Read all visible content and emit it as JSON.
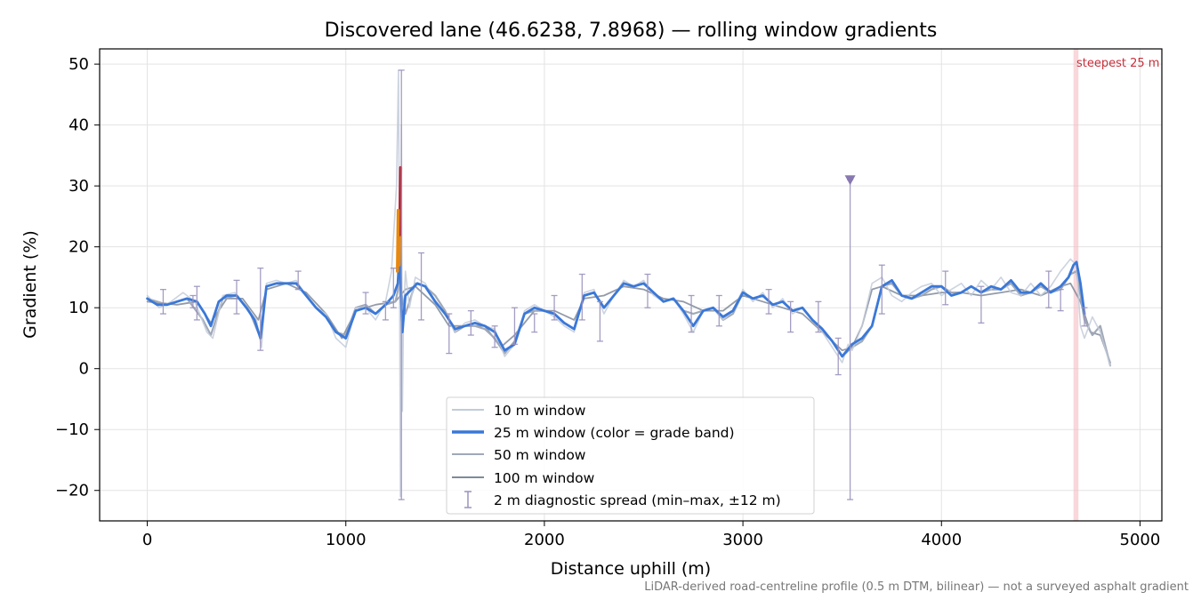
{
  "chart_data": {
    "type": "line",
    "title": "Discovered lane (46.6238, 7.8968) — rolling window gradients",
    "xlabel": "Distance uphill (m)",
    "ylabel": "Gradient (%)",
    "xlim": [
      -240,
      5110
    ],
    "ylim": [
      -25,
      52.5
    ],
    "xticks": [
      0,
      1000,
      2000,
      3000,
      4000,
      5000
    ],
    "yticks": [
      -20,
      -10,
      0,
      10,
      20,
      30,
      40,
      50
    ],
    "xtick_labels": [
      "0",
      "1000",
      "2000",
      "3000",
      "4000",
      "5000"
    ],
    "ytick_labels": [
      "−20",
      "−10",
      "0",
      "10",
      "20",
      "30",
      "40",
      "50"
    ],
    "grid": true,
    "legend": {
      "placement": "lower-center",
      "entries": [
        {
          "label": "10 m window",
          "color": "#c3cbd9"
        },
        {
          "label": "25 m window (color = grade band)",
          "color": "#3a78d8"
        },
        {
          "label": "50 m window",
          "color": "#a0a9b8"
        },
        {
          "label": "100 m window",
          "color": "#808a99"
        },
        {
          "label": "2 m diagnostic spread (min–max, ±12 m)",
          "color": "#9a92bd"
        }
      ]
    },
    "annotation": "steepest 25 m",
    "footnote": "LiDAR-derived road-centreline profile (0.5 m DTM, bilinear) — not a surveyed asphalt gradient",
    "steepest_band": [
      4665,
      4690
    ],
    "colors": {
      "w10": "#c3cbd9",
      "w25": "#3a78d8",
      "w50": "#a0a9b8",
      "w100": "#808a99",
      "spread": "#9a92bd",
      "band_orange": "#e8880e",
      "band_red": "#b81f2c",
      "highlight": "#f4b6bd"
    },
    "series": [
      {
        "name": "100 m window",
        "x": [
          0,
          150,
          250,
          320,
          400,
          480,
          560,
          600,
          700,
          800,
          900,
          980,
          1050,
          1150,
          1250,
          1300,
          1350,
          1450,
          1520,
          1600,
          1700,
          1780,
          1850,
          1950,
          2050,
          2150,
          2200,
          2300,
          2400,
          2500,
          2600,
          2700,
          2800,
          2900,
          3000,
          3100,
          3200,
          3300,
          3400,
          3500,
          3550,
          3600,
          3650,
          3700,
          3800,
          3900,
          4000,
          4100,
          4200,
          4300,
          4400,
          4500,
          4600,
          4650,
          4700,
          4750,
          4800,
          4850
        ],
        "y": [
          11,
          10.5,
          11,
          7.5,
          11.5,
          11.5,
          8,
          13,
          14,
          12.5,
          9,
          5,
          9.5,
          10.5,
          11,
          13,
          13.5,
          10.5,
          7,
          7,
          7,
          3.5,
          5.5,
          9.5,
          9.5,
          8,
          11.5,
          12,
          13.5,
          13,
          11.5,
          11,
          9.5,
          9.5,
          12,
          11,
          10,
          9,
          6,
          3,
          3.5,
          7,
          13,
          13.5,
          12,
          12,
          12.5,
          12.5,
          12,
          12.5,
          13,
          12,
          13.5,
          14,
          11,
          6,
          5.5,
          1
        ]
      },
      {
        "name": "50 m window",
        "x": [
          0,
          100,
          200,
          280,
          320,
          380,
          450,
          520,
          570,
          600,
          650,
          700,
          750,
          800,
          850,
          900,
          950,
          1000,
          1050,
          1100,
          1150,
          1200,
          1250,
          1270,
          1300,
          1350,
          1400,
          1450,
          1500,
          1550,
          1600,
          1650,
          1700,
          1750,
          1800,
          1850,
          1900,
          1950,
          2000,
          2050,
          2100,
          2150,
          2200,
          2250,
          2300,
          2350,
          2400,
          2450,
          2500,
          2550,
          2600,
          2650,
          2700,
          2750,
          2800,
          2850,
          2900,
          2950,
          3000,
          3050,
          3100,
          3150,
          3200,
          3250,
          3300,
          3350,
          3400,
          3450,
          3500,
          3550,
          3600,
          3650,
          3700,
          3750,
          3800,
          3850,
          3900,
          3950,
          4000,
          4050,
          4100,
          4150,
          4200,
          4250,
          4300,
          4350,
          4400,
          4450,
          4500,
          4550,
          4600,
          4650,
          4680,
          4720,
          4760,
          4800,
          4850
        ],
        "y": [
          11.5,
          10.5,
          11.5,
          8,
          5.5,
          11.5,
          12,
          9,
          5,
          13.5,
          14,
          14,
          14,
          12,
          10,
          8.5,
          6,
          5.5,
          10,
          10.5,
          9,
          10.5,
          11,
          14,
          9,
          14,
          13.5,
          12,
          9.5,
          6,
          7,
          7,
          6.5,
          5,
          2.5,
          4.5,
          9,
          9.5,
          9.5,
          9,
          7.5,
          6.5,
          12,
          12.5,
          10,
          12,
          14,
          13.5,
          14,
          12.5,
          11,
          11.5,
          9.5,
          9,
          9.5,
          10,
          8,
          9,
          12.5,
          11.5,
          12,
          10.5,
          11,
          9.5,
          10,
          8,
          6.5,
          4.5,
          2,
          3.5,
          4.5,
          7,
          13.5,
          14,
          12,
          11.5,
          12,
          13,
          13.5,
          12.5,
          12.5,
          13.5,
          12.5,
          13,
          13,
          14,
          12,
          12.5,
          13.5,
          12.5,
          13,
          15.5,
          16,
          8,
          5.5,
          7,
          0.5
        ]
      },
      {
        "name": "10 m window",
        "x": [
          0,
          60,
          120,
          180,
          240,
          300,
          330,
          380,
          440,
          500,
          550,
          575,
          600,
          650,
          700,
          750,
          800,
          850,
          900,
          950,
          1000,
          1050,
          1100,
          1150,
          1200,
          1230,
          1255,
          1265,
          1270,
          1275,
          1280,
          1285,
          1290,
          1300,
          1320,
          1350,
          1400,
          1450,
          1500,
          1550,
          1600,
          1650,
          1700,
          1750,
          1800,
          1850,
          1900,
          1950,
          2000,
          2050,
          2100,
          2150,
          2200,
          2250,
          2300,
          2350,
          2400,
          2450,
          2500,
          2550,
          2600,
          2650,
          2700,
          2750,
          2800,
          2850,
          2900,
          2950,
          3000,
          3050,
          3100,
          3150,
          3200,
          3250,
          3300,
          3350,
          3400,
          3450,
          3500,
          3530,
          3550,
          3600,
          3650,
          3700,
          3750,
          3800,
          3850,
          3900,
          3950,
          4000,
          4050,
          4100,
          4150,
          4200,
          4250,
          4300,
          4350,
          4400,
          4450,
          4500,
          4550,
          4600,
          4650,
          4680,
          4700,
          4720,
          4760,
          4800,
          4850
        ],
        "y": [
          12,
          10,
          11,
          12.5,
          11,
          6,
          5,
          12,
          12.5,
          10,
          8,
          3.5,
          14,
          14.5,
          14,
          14.5,
          12,
          10,
          9,
          5,
          3.5,
          10,
          10,
          8,
          11,
          16,
          30,
          49,
          20,
          -21,
          40,
          -7,
          8,
          16,
          10,
          15,
          14,
          11,
          9,
          6,
          7.5,
          8,
          7,
          6.5,
          2,
          4,
          9.5,
          10.5,
          9.5,
          8.5,
          7,
          6,
          12.5,
          13,
          9,
          12,
          14.5,
          13.5,
          14.5,
          12,
          11,
          11.5,
          9,
          6,
          9.5,
          10,
          8,
          9.5,
          13,
          11,
          12.5,
          10,
          11.5,
          9,
          10,
          8,
          6,
          3.5,
          1,
          4,
          3,
          7,
          14,
          15,
          12,
          11,
          12.5,
          13.5,
          14,
          12,
          13,
          14,
          12,
          14.5,
          13,
          15,
          12.5,
          12,
          14,
          12,
          13.5,
          16,
          18,
          17,
          7,
          5,
          8.5,
          6,
          0.5
        ]
      },
      {
        "name": "25 m window (color = grade band)",
        "x": [
          0,
          50,
          100,
          150,
          200,
          250,
          290,
          320,
          360,
          400,
          450,
          500,
          540,
          570,
          600,
          650,
          700,
          750,
          800,
          850,
          900,
          950,
          1000,
          1050,
          1100,
          1150,
          1200,
          1240,
          1262,
          1272,
          1278,
          1285,
          1300,
          1330,
          1360,
          1400,
          1450,
          1500,
          1550,
          1600,
          1650,
          1700,
          1750,
          1800,
          1850,
          1900,
          1950,
          2000,
          2050,
          2100,
          2150,
          2200,
          2250,
          2300,
          2350,
          2400,
          2450,
          2500,
          2550,
          2600,
          2650,
          2700,
          2750,
          2800,
          2850,
          2900,
          2950,
          3000,
          3050,
          3100,
          3150,
          3200,
          3250,
          3300,
          3350,
          3400,
          3450,
          3500,
          3550,
          3600,
          3650,
          3700,
          3750,
          3800,
          3850,
          3900,
          3950,
          4000,
          4050,
          4100,
          4150,
          4200,
          4250,
          4300,
          4350,
          4400,
          4450,
          4500,
          4550,
          4600,
          4640,
          4665,
          4680,
          4700,
          4720
        ],
        "y": [
          11.5,
          10.5,
          10.5,
          11,
          11.5,
          11,
          9,
          7,
          11,
          12,
          12,
          10,
          8,
          5,
          13.5,
          14,
          14,
          14,
          12,
          10,
          8.5,
          6,
          5,
          9.5,
          10,
          9,
          10.5,
          12,
          14,
          20,
          12,
          6,
          12,
          13,
          14,
          13.5,
          11,
          9,
          6.5,
          7,
          7.5,
          7,
          6,
          3,
          4,
          9,
          10,
          9.5,
          9,
          7.5,
          6.5,
          12,
          12.5,
          10,
          12,
          14,
          13.5,
          14,
          12.5,
          11,
          11.5,
          9.5,
          7,
          9.5,
          10,
          8.5,
          9.5,
          12.5,
          11.5,
          12,
          10.5,
          11,
          9.5,
          10,
          8,
          6.5,
          4.5,
          2,
          4,
          5,
          7,
          13.5,
          14.5,
          12,
          11.5,
          12.5,
          13.5,
          13.5,
          12,
          12.5,
          13.5,
          12.5,
          13.5,
          13,
          14.5,
          12.5,
          12.5,
          14,
          12.5,
          13.5,
          15,
          17,
          17.5,
          14,
          9
        ]
      }
    ],
    "grade_band_segments": [
      {
        "color": "orange",
        "x": [
          1268,
          1272
        ],
        "y": [
          17,
          23.5
        ]
      },
      {
        "color": "red",
        "x": [
          1272,
          1276
        ],
        "y": [
          22,
          33
        ]
      },
      {
        "color": "orange",
        "x": [
          1260,
          1264
        ],
        "y": [
          16,
          26
        ]
      }
    ],
    "spread": [
      {
        "x": 80,
        "min": 9,
        "max": 13
      },
      {
        "x": 230,
        "min": 10,
        "max": 12
      },
      {
        "x": 250,
        "min": 8,
        "max": 13.5
      },
      {
        "x": 450,
        "min": 9,
        "max": 14.5
      },
      {
        "x": 570,
        "min": 3,
        "max": 16.5
      },
      {
        "x": 760,
        "min": 13,
        "max": 16
      },
      {
        "x": 1100,
        "min": 9,
        "max": 12.5
      },
      {
        "x": 1200,
        "min": 8,
        "max": 11
      },
      {
        "x": 1240,
        "min": 10,
        "max": 16.5
      },
      {
        "x": 1280,
        "min": -21.5,
        "max": 49
      },
      {
        "x": 1380,
        "min": 8,
        "max": 19
      },
      {
        "x": 1520,
        "min": 2.5,
        "max": 9
      },
      {
        "x": 1630,
        "min": 5.5,
        "max": 9.5
      },
      {
        "x": 1750,
        "min": 3.5,
        "max": 7
      },
      {
        "x": 1850,
        "min": 4,
        "max": 10
      },
      {
        "x": 1950,
        "min": 6,
        "max": 9
      },
      {
        "x": 2050,
        "min": 8,
        "max": 12
      },
      {
        "x": 2190,
        "min": 8,
        "max": 15.5
      },
      {
        "x": 2280,
        "min": 4.5,
        "max": 11
      },
      {
        "x": 2520,
        "min": 10,
        "max": 15.5
      },
      {
        "x": 2740,
        "min": 6,
        "max": 12
      },
      {
        "x": 2880,
        "min": 7,
        "max": 12
      },
      {
        "x": 3130,
        "min": 9,
        "max": 13
      },
      {
        "x": 3240,
        "min": 6,
        "max": 11
      },
      {
        "x": 3380,
        "min": 6,
        "max": 11
      },
      {
        "x": 3480,
        "min": -1,
        "max": 5
      },
      {
        "x": 3540,
        "min": -21.5,
        "max": 31
      },
      {
        "x": 3700,
        "min": 9,
        "max": 17
      },
      {
        "x": 4020,
        "min": 10.5,
        "max": 16
      },
      {
        "x": 4200,
        "min": 7.5,
        "max": 13.5
      },
      {
        "x": 4540,
        "min": 10,
        "max": 16
      },
      {
        "x": 4600,
        "min": 9.5,
        "max": 13
      },
      {
        "x": 4720,
        "min": 7,
        "max": 10
      }
    ],
    "marker": {
      "x": 3540,
      "y": 31
    }
  }
}
